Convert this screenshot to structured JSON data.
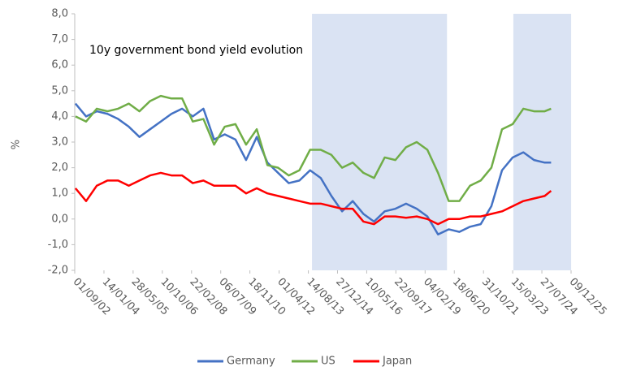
{
  "chart_data": {
    "type": "line",
    "annotation": "10y government bond yield evolution",
    "y_label": "%",
    "x": [
      2002.7,
      2003.2,
      2003.7,
      2004.2,
      2004.7,
      2005.2,
      2005.7,
      2006.2,
      2006.7,
      2007.2,
      2007.7,
      2008.2,
      2008.7,
      2009.2,
      2009.7,
      2010.2,
      2010.7,
      2011.2,
      2011.7,
      2012.2,
      2012.7,
      2013.2,
      2013.7,
      2014.2,
      2014.7,
      2015.2,
      2015.7,
      2016.2,
      2016.7,
      2017.2,
      2017.7,
      2018.2,
      2018.7,
      2019.2,
      2019.7,
      2020.2,
      2020.7,
      2021.2,
      2021.7,
      2022.2,
      2022.7,
      2023.2,
      2023.7,
      2024.2,
      2024.7,
      2025.0
    ],
    "series": [
      {
        "name": "Germany",
        "color": "#4472c4",
        "values": [
          4.5,
          4.0,
          4.2,
          4.1,
          3.9,
          3.6,
          3.2,
          3.5,
          3.8,
          4.1,
          4.3,
          4.0,
          4.3,
          3.1,
          3.3,
          3.1,
          2.3,
          3.2,
          2.2,
          1.8,
          1.4,
          1.5,
          1.9,
          1.6,
          0.9,
          0.3,
          0.7,
          0.2,
          -0.1,
          0.3,
          0.4,
          0.6,
          0.4,
          0.1,
          -0.6,
          -0.4,
          -0.5,
          -0.3,
          -0.2,
          0.5,
          1.9,
          2.4,
          2.6,
          2.3,
          2.2,
          2.2
        ]
      },
      {
        "name": "US",
        "color": "#70ad47",
        "values": [
          4.0,
          3.8,
          4.3,
          4.2,
          4.3,
          4.5,
          4.2,
          4.6,
          4.8,
          4.7,
          4.7,
          3.8,
          3.9,
          2.9,
          3.6,
          3.7,
          2.9,
          3.5,
          2.1,
          2.0,
          1.7,
          1.9,
          2.7,
          2.7,
          2.5,
          2.0,
          2.2,
          1.8,
          1.6,
          2.4,
          2.3,
          2.8,
          3.0,
          2.7,
          1.8,
          0.7,
          0.7,
          1.3,
          1.5,
          2.0,
          3.5,
          3.7,
          4.3,
          4.2,
          4.2,
          4.3
        ]
      },
      {
        "name": "Japan",
        "color": "#ff0000",
        "values": [
          1.2,
          0.7,
          1.3,
          1.5,
          1.5,
          1.3,
          1.5,
          1.7,
          1.8,
          1.7,
          1.7,
          1.4,
          1.5,
          1.3,
          1.3,
          1.3,
          1.0,
          1.2,
          1.0,
          0.9,
          0.8,
          0.7,
          0.6,
          0.6,
          0.5,
          0.4,
          0.4,
          -0.1,
          -0.2,
          0.1,
          0.1,
          0.05,
          0.1,
          0.0,
          -0.2,
          0.0,
          0.0,
          0.1,
          0.1,
          0.2,
          0.3,
          0.5,
          0.7,
          0.8,
          0.9,
          1.1
        ]
      }
    ],
    "shaded_ranges": [
      [
        2013.79,
        2020.12
      ],
      [
        2023.23,
        2025.94
      ]
    ],
    "shade_color": "#dae3f3",
    "xlim": [
      2002.666,
      2025.937
    ],
    "xticks": [
      {
        "value": 2002.666,
        "label": "01/09/02"
      },
      {
        "value": 2004.036,
        "label": "14/01/04"
      },
      {
        "value": 2005.403,
        "label": "28/05/05"
      },
      {
        "value": 2006.773,
        "label": "10/10/06"
      },
      {
        "value": 2008.142,
        "label": "22/02/08"
      },
      {
        "value": 2009.511,
        "label": "06/07/09"
      },
      {
        "value": 2010.879,
        "label": "18/11/10"
      },
      {
        "value": 2012.249,
        "label": "01/04/12"
      },
      {
        "value": 2013.619,
        "label": "14/08/13"
      },
      {
        "value": 2014.986,
        "label": "27/12/14"
      },
      {
        "value": 2016.355,
        "label": "10/05/16"
      },
      {
        "value": 2017.723,
        "label": "22/09/17"
      },
      {
        "value": 2019.093,
        "label": "04/02/19"
      },
      {
        "value": 2020.462,
        "label": "18/06/20"
      },
      {
        "value": 2021.831,
        "label": "31/10/21"
      },
      {
        "value": 2023.2,
        "label": "15/03/23"
      },
      {
        "value": 2024.568,
        "label": "27/07/24"
      },
      {
        "value": 2025.937,
        "label": "09/12/25"
      }
    ],
    "ylim": [
      -2,
      8
    ],
    "yticks": [
      {
        "value": -2,
        "label": "-2,0"
      },
      {
        "value": -1,
        "label": "-1,0"
      },
      {
        "value": 0,
        "label": "0,0"
      },
      {
        "value": 1,
        "label": "1,0"
      },
      {
        "value": 2,
        "label": "2,0"
      },
      {
        "value": 3,
        "label": "3,0"
      },
      {
        "value": 4,
        "label": "4,0"
      },
      {
        "value": 5,
        "label": "5,0"
      },
      {
        "value": 6,
        "label": "6,0"
      },
      {
        "value": 7,
        "label": "7,0"
      },
      {
        "value": 8,
        "label": "8,0"
      }
    ],
    "grid": false,
    "legend": "bottom"
  }
}
